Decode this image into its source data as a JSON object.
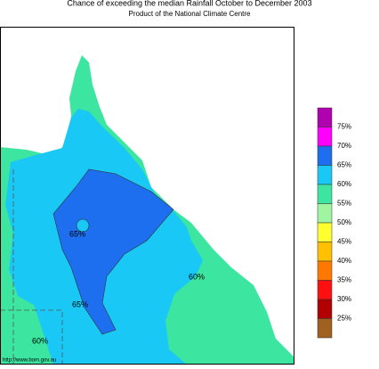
{
  "header": {
    "title": "Chance of exceeding the median Rainfall October to December 2003",
    "subtitle": "Product of the National Climate Centre"
  },
  "map": {
    "contour_labels": [
      "65%",
      "65%",
      "60%",
      "60%"
    ],
    "source": "http://www.bom.gov.au"
  },
  "legend": {
    "colors": [
      "#b000b0",
      "#ff00ff",
      "#1e6ef0",
      "#19c8f5",
      "#3ce6a0",
      "#a0f5a0",
      "#ffff30",
      "#ffc000",
      "#ff7800",
      "#ff1010",
      "#b00000",
      "#a06020"
    ],
    "labels": [
      "75%",
      "70%",
      "65%",
      "60%",
      "55%",
      "50%",
      "45%",
      "40%",
      "35%",
      "30%",
      "25%"
    ]
  }
}
